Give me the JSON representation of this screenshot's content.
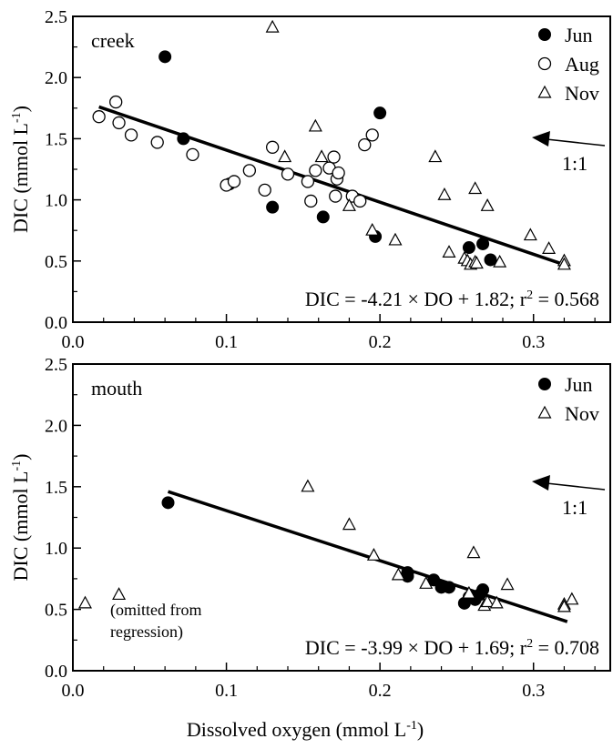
{
  "chart_data": [
    {
      "type": "scatter",
      "panel_label": "creek",
      "xlabel": "",
      "ylabel_main": "DIC (mmol L",
      "ylabel_sup": "-1",
      "ylabel_tail": ")",
      "xlim": [
        0.0,
        0.35
      ],
      "ylim": [
        0.0,
        2.5
      ],
      "xticks": [
        "0.0",
        "0.1",
        "0.2",
        "0.3"
      ],
      "yticks": [
        "0.0",
        "0.5",
        "1.0",
        "1.5",
        "2.0",
        "2.5"
      ],
      "legend_position": "top-right",
      "series": [
        {
          "name": "Jun",
          "marker": "filled-circle",
          "points": [
            [
              0.06,
              2.17
            ],
            [
              0.072,
              1.5
            ],
            [
              0.102,
              1.13
            ],
            [
              0.13,
              0.94
            ],
            [
              0.163,
              0.86
            ],
            [
              0.2,
              1.71
            ],
            [
              0.197,
              0.7
            ],
            [
              0.258,
              0.61
            ],
            [
              0.267,
              0.64
            ],
            [
              0.272,
              0.51
            ]
          ]
        },
        {
          "name": "Aug",
          "marker": "open-circle",
          "points": [
            [
              0.017,
              1.68
            ],
            [
              0.028,
              1.8
            ],
            [
              0.03,
              1.63
            ],
            [
              0.038,
              1.53
            ],
            [
              0.055,
              1.47
            ],
            [
              0.078,
              1.37
            ],
            [
              0.1,
              1.12
            ],
            [
              0.105,
              1.15
            ],
            [
              0.115,
              1.24
            ],
            [
              0.13,
              1.43
            ],
            [
              0.125,
              1.08
            ],
            [
              0.14,
              1.21
            ],
            [
              0.153,
              1.15
            ],
            [
              0.155,
              0.99
            ],
            [
              0.158,
              1.24
            ],
            [
              0.167,
              1.26
            ],
            [
              0.17,
              1.35
            ],
            [
              0.172,
              1.17
            ],
            [
              0.173,
              1.22
            ],
            [
              0.171,
              1.03
            ],
            [
              0.182,
              1.03
            ],
            [
              0.187,
              0.99
            ],
            [
              0.19,
              1.45
            ],
            [
              0.195,
              1.53
            ]
          ]
        },
        {
          "name": "Nov",
          "marker": "open-triangle",
          "points": [
            [
              0.13,
              2.41
            ],
            [
              0.138,
              1.35
            ],
            [
              0.158,
              1.6
            ],
            [
              0.162,
              1.35
            ],
            [
              0.18,
              0.95
            ],
            [
              0.195,
              0.75
            ],
            [
              0.21,
              0.67
            ],
            [
              0.236,
              1.35
            ],
            [
              0.242,
              1.04
            ],
            [
              0.245,
              0.57
            ],
            [
              0.255,
              0.52
            ],
            [
              0.257,
              0.5
            ],
            [
              0.259,
              0.47
            ],
            [
              0.262,
              1.09
            ],
            [
              0.262,
              0.49
            ],
            [
              0.263,
              0.48
            ],
            [
              0.27,
              0.95
            ],
            [
              0.278,
              0.49
            ],
            [
              0.298,
              0.71
            ],
            [
              0.31,
              0.6
            ],
            [
              0.32,
              0.5
            ],
            [
              0.32,
              0.47
            ]
          ]
        }
      ],
      "regression": {
        "x": [
          0.017,
          0.32
        ],
        "y": [
          1.76,
          0.47
        ]
      },
      "equation": {
        "main": "DIC = -4.21 × DO + 1.82; r",
        "sup": "2",
        "tail": " = 0.568"
      },
      "ratio_label": "1:1"
    },
    {
      "type": "scatter",
      "panel_label": "mouth",
      "xlabel_main": "Dissolved oxygen (mmol L",
      "xlabel_sup": "-1",
      "xlabel_tail": ")",
      "ylabel_main": "DIC (mmol L",
      "ylabel_sup": "-1",
      "ylabel_tail": ")",
      "xlim": [
        0.0,
        0.35
      ],
      "ylim": [
        0.0,
        2.5
      ],
      "xticks": [
        "0.0",
        "0.1",
        "0.2",
        "0.3"
      ],
      "yticks": [
        "0.0",
        "0.5",
        "1.0",
        "1.5",
        "2.0",
        "2.5"
      ],
      "legend_position": "top-right",
      "series": [
        {
          "name": "Jun",
          "marker": "filled-circle",
          "points": [
            [
              0.062,
              1.37
            ],
            [
              0.218,
              0.8
            ],
            [
              0.218,
              0.77
            ],
            [
              0.235,
              0.74
            ],
            [
              0.24,
              0.68
            ],
            [
              0.245,
              0.68
            ],
            [
              0.255,
              0.55
            ],
            [
              0.258,
              0.6
            ],
            [
              0.262,
              0.58
            ],
            [
              0.265,
              0.62
            ],
            [
              0.267,
              0.66
            ]
          ]
        },
        {
          "name": "Nov",
          "marker": "open-triangle",
          "points": [
            [
              0.008,
              0.55
            ],
            [
              0.03,
              0.62
            ],
            [
              0.153,
              1.5
            ],
            [
              0.18,
              1.19
            ],
            [
              0.196,
              0.94
            ],
            [
              0.212,
              0.78
            ],
            [
              0.23,
              0.71
            ],
            [
              0.258,
              0.63
            ],
            [
              0.261,
              0.96
            ],
            [
              0.268,
              0.53
            ],
            [
              0.27,
              0.56
            ],
            [
              0.276,
              0.55
            ],
            [
              0.283,
              0.7
            ],
            [
              0.32,
              0.54
            ],
            [
              0.32,
              0.52
            ],
            [
              0.325,
              0.58
            ]
          ]
        }
      ],
      "regression": {
        "x": [
          0.062,
          0.322
        ],
        "y": [
          1.46,
          0.4
        ]
      },
      "equation": {
        "main": "DIC = -3.99 × DO + 1.69; r",
        "sup": "2",
        "tail": " = 0.708"
      },
      "ratio_label": "1:1",
      "omitted_note": [
        "(omitted from",
        "regression)"
      ]
    }
  ]
}
